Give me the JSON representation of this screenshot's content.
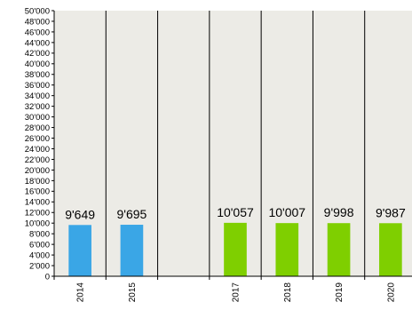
{
  "chart_data": {
    "type": "bar",
    "categories": [
      "2014",
      "2015",
      "",
      "2017",
      "2018",
      "2019",
      "2020"
    ],
    "values": [
      9649,
      9695,
      null,
      10057,
      10007,
      9998,
      9987
    ],
    "data_labels": [
      "9'649",
      "9'695",
      "",
      "10'057",
      "10'007",
      "9'998",
      "9'987"
    ],
    "bar_colors": [
      "#3aa6e6",
      "#3aa6e6",
      null,
      "#7fcf00",
      "#7fcf00",
      "#7fcf00",
      "#7fcf00"
    ],
    "ylim": [
      0,
      50000
    ],
    "y_tick_step": 2000,
    "y_tick_labels": [
      "0",
      "2'000",
      "4'000",
      "6'000",
      "8'000",
      "10'000",
      "12'000",
      "14'000",
      "16'000",
      "18'000",
      "20'000",
      "22'000",
      "24'000",
      "26'000",
      "28'000",
      "30'000",
      "32'000",
      "34'000",
      "36'000",
      "38'000",
      "40'000",
      "42'000",
      "44'000",
      "46'000",
      "48'000",
      "50'000"
    ],
    "title": "",
    "xlabel": "",
    "ylabel": "",
    "plot_background": "#ecebe6",
    "grid": false
  }
}
